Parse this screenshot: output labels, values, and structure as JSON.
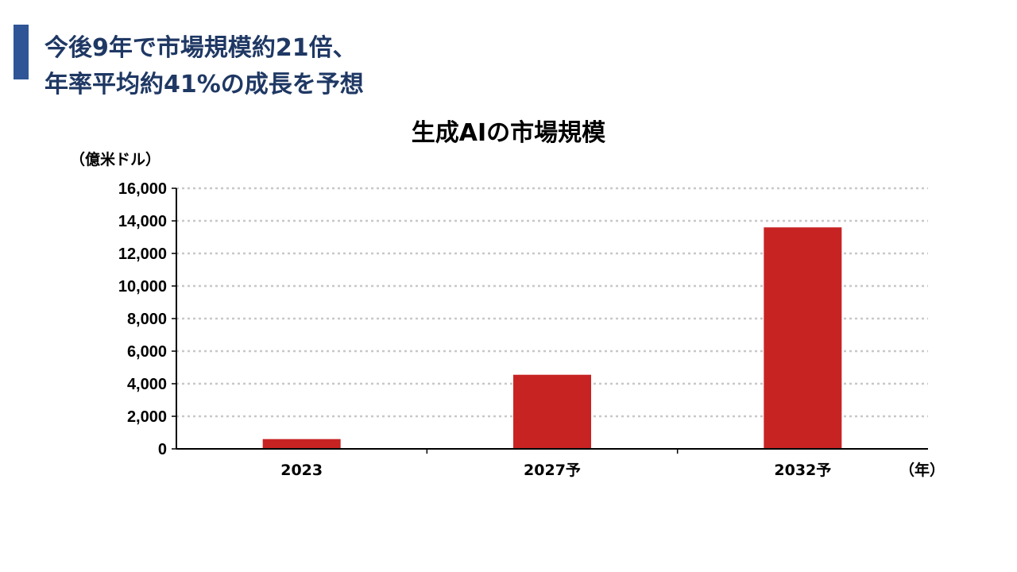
{
  "headline": {
    "line1": "今後9年で市場規模約21倍、",
    "line2": "年率平均約41%の成長を予想"
  },
  "colors": {
    "accent": "#2f5597",
    "headline": "#1f3864",
    "bar": "#c82323",
    "grid": "#c8c8c8"
  },
  "chart_data": {
    "type": "bar",
    "title": "生成AIの市場規模",
    "ylabel": "（億米ドル）",
    "xlabel": "（年）",
    "categories": [
      "2023",
      "2027予",
      "2032予"
    ],
    "values": [
      600,
      4550,
      13600
    ],
    "ylim": [
      0,
      16000
    ],
    "yticks": [
      0,
      2000,
      4000,
      6000,
      8000,
      10000,
      12000,
      14000,
      16000
    ],
    "ytick_labels": [
      "0",
      "2,000",
      "4,000",
      "6,000",
      "8,000",
      "10,000",
      "12,000",
      "14,000",
      "16,000"
    ],
    "grid": true,
    "legend": "none"
  }
}
